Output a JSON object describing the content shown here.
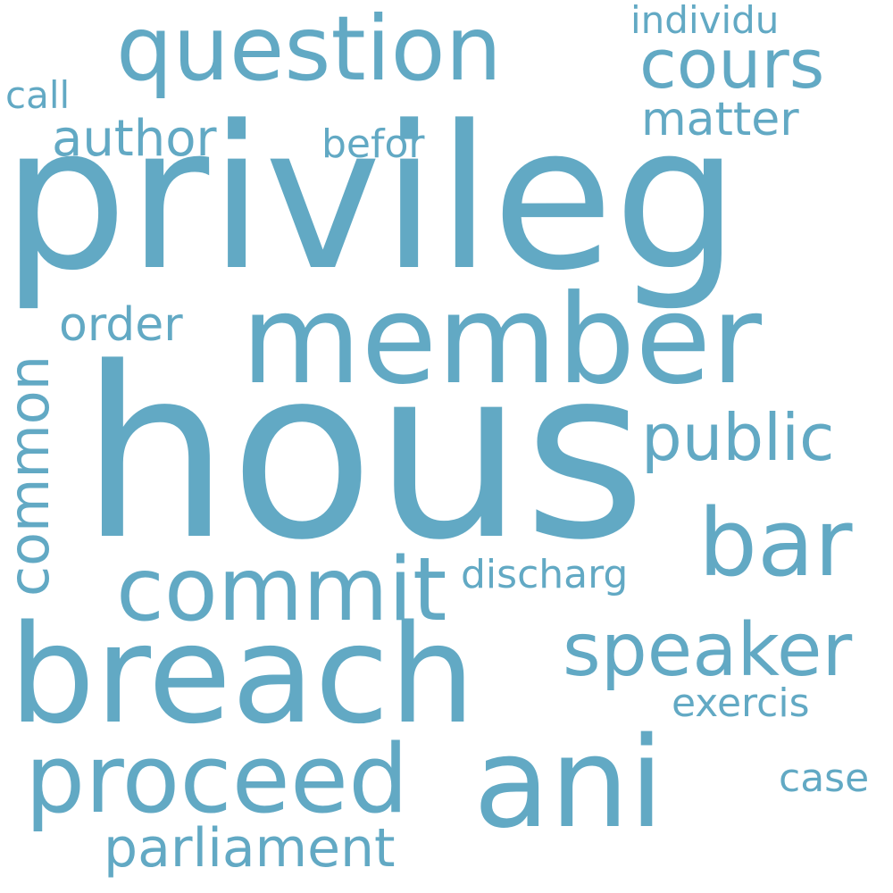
{
  "theme": {
    "word_color": "#62A9C4",
    "background": "#ffffff"
  },
  "words": {
    "hous": "hous",
    "privileg": "privileg",
    "member": "member",
    "breach": "breach",
    "question": "question",
    "ani": "ani",
    "proceed": "proceed",
    "commit": "commit",
    "bar": "bar",
    "speaker": "speaker",
    "common": "common",
    "cours": "cours",
    "public": "public",
    "parliament": "parliament",
    "author": "author",
    "order": "order",
    "matter": "matter",
    "individu": "individu",
    "call": "call",
    "befor": "befor",
    "discharg": "discharg",
    "exercis": "exercis",
    "case": "case"
  }
}
